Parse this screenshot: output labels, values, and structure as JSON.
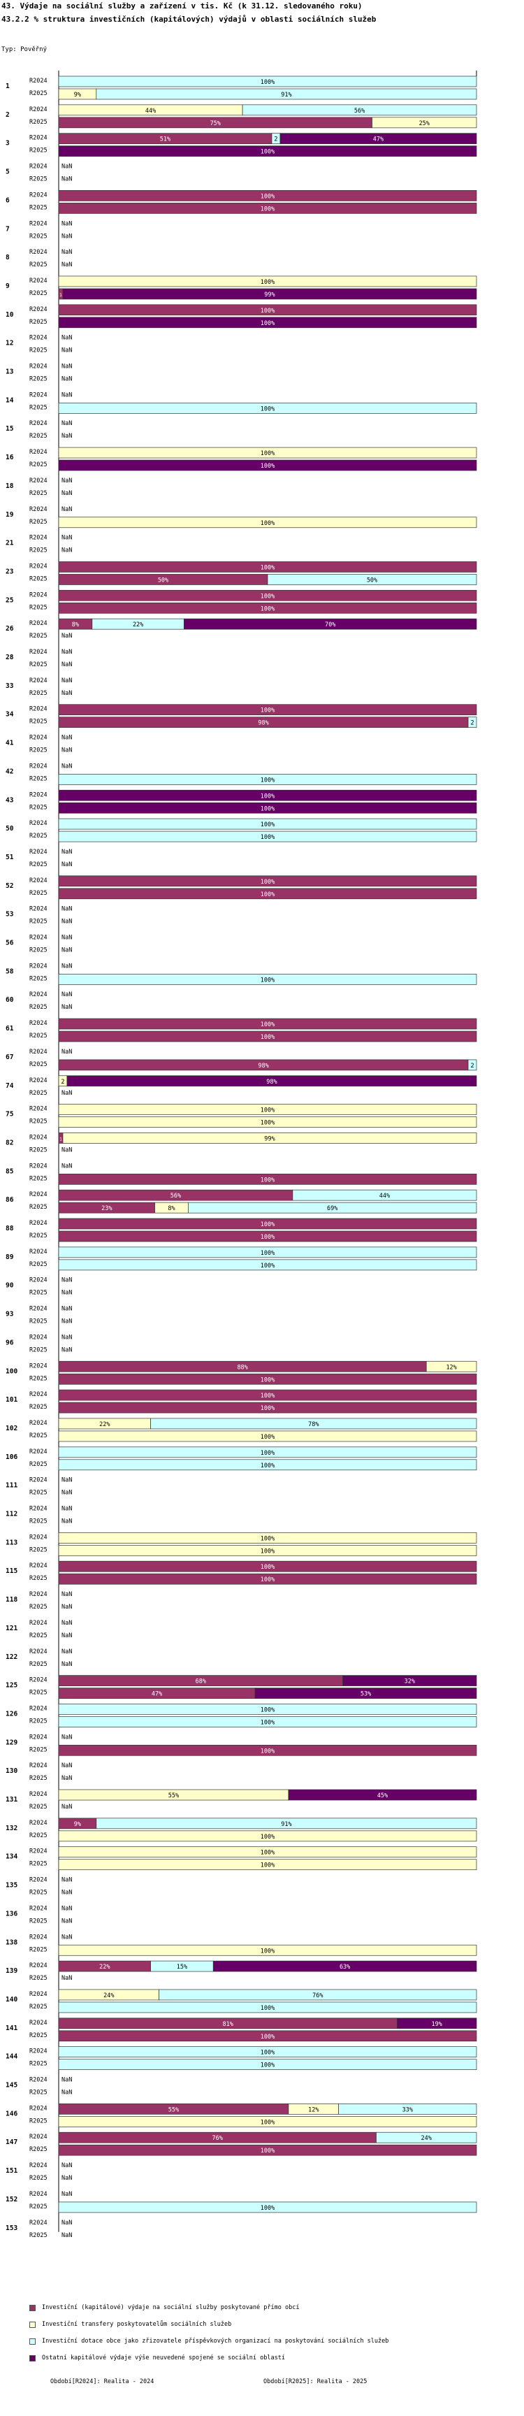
{
  "header": {
    "title": "43. Výdaje na sociální služby a zařízení v tis. Kč (k 31.12. sledovaného roku)",
    "subtitle": "43.2.2 % struktura investičních (kapitálových) výdajů v oblasti sociálních služeb",
    "type_label": "Typ: Pověřný"
  },
  "colors": {
    "s1": "#993366",
    "s2": "#ffffcc",
    "s3": "#ccffff",
    "s4": "#660066",
    "text_dark": "#ffffff",
    "text_light": "#000000"
  },
  "chart_data": {
    "type": "bar",
    "orientation": "horizontal-stacked-100",
    "year_labels": [
      "R2024",
      "R2025"
    ],
    "na_label": "NaN",
    "series": [
      {
        "name": "Investiční (kapitálové) výdaje na sociální služby poskytované přímo obcí"
      },
      {
        "name": "Investiční transfery poskytovatelům sociálních služeb"
      },
      {
        "name": "Investiční dotace obce jako zřizovatele příspěvkových organizací na poskytování sociálních služeb"
      },
      {
        "name": "Ostatní kapitálové výdaje výše neuvedené spojené se sociální oblastí"
      }
    ],
    "groups": [
      {
        "id": "1",
        "rows": [
          [
            0,
            0,
            100,
            0
          ],
          [
            0,
            9,
            91,
            0
          ]
        ]
      },
      {
        "id": "2",
        "rows": [
          [
            0,
            44,
            56,
            0
          ],
          [
            75,
            25,
            0,
            0
          ]
        ]
      },
      {
        "id": "3",
        "rows": [
          [
            51,
            0,
            2,
            47
          ],
          [
            0,
            0,
            0,
            100
          ]
        ]
      },
      {
        "id": "5",
        "rows": [
          null,
          null
        ]
      },
      {
        "id": "6",
        "rows": [
          [
            100,
            0,
            0,
            0
          ],
          [
            100,
            0,
            0,
            0
          ]
        ]
      },
      {
        "id": "7",
        "rows": [
          null,
          null
        ]
      },
      {
        "id": "8",
        "rows": [
          null,
          null
        ]
      },
      {
        "id": "9",
        "rows": [
          [
            0,
            100,
            0,
            0
          ],
          [
            1,
            0,
            0,
            99
          ]
        ]
      },
      {
        "id": "10",
        "rows": [
          [
            100,
            0,
            0,
            0
          ],
          [
            0,
            0,
            0,
            100
          ]
        ]
      },
      {
        "id": "12",
        "rows": [
          null,
          null
        ]
      },
      {
        "id": "13",
        "rows": [
          null,
          null
        ]
      },
      {
        "id": "14",
        "rows": [
          null,
          [
            0,
            0,
            100,
            0
          ]
        ]
      },
      {
        "id": "15",
        "rows": [
          null,
          null
        ]
      },
      {
        "id": "16",
        "rows": [
          [
            0,
            100,
            0,
            0
          ],
          [
            0,
            0,
            0,
            100
          ]
        ]
      },
      {
        "id": "18",
        "rows": [
          null,
          null
        ]
      },
      {
        "id": "19",
        "rows": [
          null,
          [
            0,
            100,
            0,
            0
          ]
        ]
      },
      {
        "id": "21",
        "rows": [
          null,
          null
        ]
      },
      {
        "id": "23",
        "rows": [
          [
            100,
            0,
            0,
            0
          ],
          [
            50,
            0,
            50,
            0
          ]
        ]
      },
      {
        "id": "25",
        "rows": [
          [
            100,
            0,
            0,
            0
          ],
          [
            100,
            0,
            0,
            0
          ]
        ]
      },
      {
        "id": "26",
        "rows": [
          [
            8,
            0,
            22,
            70
          ],
          null
        ]
      },
      {
        "id": "28",
        "rows": [
          null,
          null
        ]
      },
      {
        "id": "33",
        "rows": [
          null,
          null
        ]
      },
      {
        "id": "34",
        "rows": [
          [
            100,
            0,
            0,
            0
          ],
          [
            98,
            0,
            2,
            0
          ]
        ]
      },
      {
        "id": "41",
        "rows": [
          null,
          null
        ]
      },
      {
        "id": "42",
        "rows": [
          null,
          [
            0,
            0,
            100,
            0
          ]
        ]
      },
      {
        "id": "43",
        "rows": [
          [
            0,
            0,
            0,
            100
          ],
          [
            0,
            0,
            0,
            100
          ]
        ]
      },
      {
        "id": "50",
        "rows": [
          [
            0,
            0,
            100,
            0
          ],
          [
            0,
            0,
            100,
            0
          ]
        ]
      },
      {
        "id": "51",
        "rows": [
          null,
          null
        ]
      },
      {
        "id": "52",
        "rows": [
          [
            100,
            0,
            0,
            0
          ],
          [
            100,
            0,
            0,
            0
          ]
        ]
      },
      {
        "id": "53",
        "rows": [
          null,
          null
        ]
      },
      {
        "id": "56",
        "rows": [
          null,
          null
        ]
      },
      {
        "id": "58",
        "rows": [
          null,
          [
            0,
            0,
            100,
            0
          ]
        ]
      },
      {
        "id": "60",
        "rows": [
          null,
          null
        ]
      },
      {
        "id": "61",
        "rows": [
          [
            100,
            0,
            0,
            0
          ],
          [
            100,
            0,
            0,
            0
          ]
        ]
      },
      {
        "id": "67",
        "rows": [
          null,
          [
            98,
            0,
            2,
            0
          ]
        ]
      },
      {
        "id": "74",
        "rows": [
          [
            0,
            2,
            0,
            98
          ],
          null
        ]
      },
      {
        "id": "75",
        "rows": [
          [
            0,
            100,
            0,
            0
          ],
          [
            0,
            100,
            0,
            0
          ]
        ]
      },
      {
        "id": "82",
        "rows": [
          [
            1,
            99,
            0,
            0
          ],
          null
        ]
      },
      {
        "id": "85",
        "rows": [
          null,
          [
            100,
            0,
            0,
            0
          ]
        ]
      },
      {
        "id": "86",
        "rows": [
          [
            56,
            0,
            44,
            0
          ],
          [
            23,
            8,
            69,
            0
          ]
        ]
      },
      {
        "id": "88",
        "rows": [
          [
            100,
            0,
            0,
            0
          ],
          [
            100,
            0,
            0,
            0
          ]
        ]
      },
      {
        "id": "89",
        "rows": [
          [
            0,
            0,
            100,
            0
          ],
          [
            0,
            0,
            100,
            0
          ]
        ]
      },
      {
        "id": "90",
        "rows": [
          null,
          null
        ]
      },
      {
        "id": "93",
        "rows": [
          null,
          null
        ]
      },
      {
        "id": "96",
        "rows": [
          null,
          null
        ]
      },
      {
        "id": "100",
        "rows": [
          [
            88,
            12,
            0,
            0
          ],
          [
            100,
            0,
            0,
            0
          ]
        ]
      },
      {
        "id": "101",
        "rows": [
          [
            100,
            0,
            0,
            0
          ],
          [
            100,
            0,
            0,
            0
          ]
        ]
      },
      {
        "id": "102",
        "rows": [
          [
            0,
            22,
            78,
            0
          ],
          [
            0,
            100,
            0,
            0
          ]
        ]
      },
      {
        "id": "106",
        "rows": [
          [
            0,
            0,
            100,
            0
          ],
          [
            0,
            0,
            100,
            0
          ]
        ]
      },
      {
        "id": "111",
        "rows": [
          null,
          null
        ]
      },
      {
        "id": "112",
        "rows": [
          null,
          null
        ]
      },
      {
        "id": "113",
        "rows": [
          [
            0,
            100,
            0,
            0
          ],
          [
            0,
            100,
            0,
            0
          ]
        ]
      },
      {
        "id": "115",
        "rows": [
          [
            100,
            0,
            0,
            0
          ],
          [
            100,
            0,
            0,
            0
          ]
        ]
      },
      {
        "id": "118",
        "rows": [
          null,
          null
        ]
      },
      {
        "id": "121",
        "rows": [
          null,
          null
        ]
      },
      {
        "id": "122",
        "rows": [
          null,
          null
        ]
      },
      {
        "id": "125",
        "rows": [
          [
            68,
            0,
            0,
            32
          ],
          [
            47,
            0,
            0,
            53
          ]
        ]
      },
      {
        "id": "126",
        "rows": [
          [
            0,
            0,
            100,
            0
          ],
          [
            0,
            0,
            100,
            0
          ]
        ]
      },
      {
        "id": "129",
        "rows": [
          null,
          [
            100,
            0,
            0,
            0
          ]
        ]
      },
      {
        "id": "130",
        "rows": [
          null,
          null
        ]
      },
      {
        "id": "131",
        "rows": [
          [
            0,
            55,
            0,
            45
          ],
          null
        ]
      },
      {
        "id": "132",
        "rows": [
          [
            9,
            0,
            91,
            0
          ],
          [
            0,
            100,
            0,
            0
          ]
        ]
      },
      {
        "id": "134",
        "rows": [
          [
            0,
            100,
            0,
            0
          ],
          [
            0,
            100,
            0,
            0
          ]
        ]
      },
      {
        "id": "135",
        "rows": [
          null,
          null
        ]
      },
      {
        "id": "136",
        "rows": [
          null,
          null
        ]
      },
      {
        "id": "138",
        "rows": [
          null,
          [
            0,
            100,
            0,
            0
          ]
        ]
      },
      {
        "id": "139",
        "rows": [
          [
            22,
            0,
            15,
            63
          ],
          null
        ]
      },
      {
        "id": "140",
        "rows": [
          [
            0,
            24,
            76,
            0
          ],
          [
            0,
            0,
            100,
            0
          ]
        ]
      },
      {
        "id": "141",
        "rows": [
          [
            81,
            0,
            0,
            19
          ],
          [
            100,
            0,
            0,
            0
          ]
        ]
      },
      {
        "id": "144",
        "rows": [
          [
            0,
            0,
            100,
            0
          ],
          [
            0,
            0,
            100,
            0
          ]
        ]
      },
      {
        "id": "145",
        "rows": [
          null,
          null
        ]
      },
      {
        "id": "146",
        "rows": [
          [
            55,
            12,
            33,
            0
          ],
          [
            0,
            100,
            0,
            0
          ]
        ]
      },
      {
        "id": "147",
        "rows": [
          [
            76,
            0,
            24,
            0
          ],
          [
            100,
            0,
            0,
            0
          ]
        ]
      },
      {
        "id": "151",
        "rows": [
          null,
          null
        ]
      },
      {
        "id": "152",
        "rows": [
          null,
          [
            0,
            0,
            100,
            0
          ]
        ]
      },
      {
        "id": "153",
        "rows": [
          null,
          null
        ]
      }
    ]
  },
  "legend": {
    "items": [
      "Investiční (kapitálové) výdaje na sociální služby poskytované přímo obcí",
      "Investiční transfery poskytovatelům sociálních služeb",
      "Investiční dotace obce jako zřizovatele příspěvkových organizací na poskytování sociálních služeb",
      "Ostatní kapitálové výdaje výše neuvedené spojené se sociální oblastí"
    ]
  },
  "footer": {
    "period1": "Období[R2024]: Realita - 2024",
    "period2": "Období[R2025]: Realita - 2025"
  }
}
